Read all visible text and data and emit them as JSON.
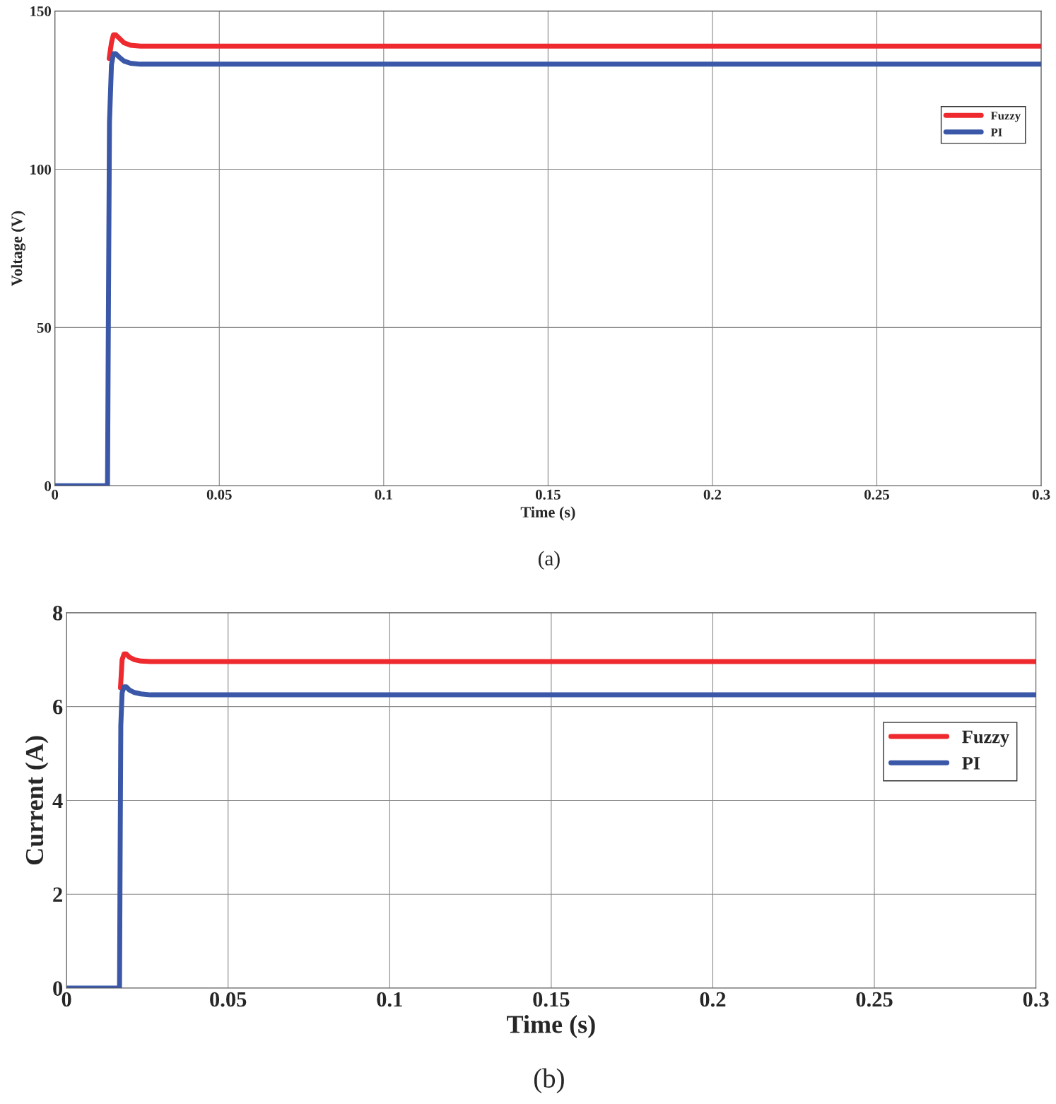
{
  "chart_data": [
    {
      "type": "line",
      "xlabel": "Time (s)",
      "ylabel": "Voltage (V)",
      "annotations": [
        "(a)"
      ],
      "xlim": [
        0,
        0.3
      ],
      "ylim": [
        0,
        150
      ],
      "xticks": [
        0,
        0.05,
        0.1,
        0.15,
        0.2,
        0.25,
        0.3
      ],
      "yticks": [
        0,
        50,
        100,
        150
      ],
      "grid": true,
      "legend": "right",
      "line_style": "solid",
      "series": [
        {
          "name": "Fuzzy",
          "color": "#ee2a2f",
          "x": [
            0.0165,
            0.0172,
            0.0178,
            0.0185,
            0.0195,
            0.021,
            0.023,
            0.026,
            0.3
          ],
          "values": [
            135,
            140,
            142.5,
            142.5,
            141.5,
            140,
            139.2,
            138.9,
            138.9
          ]
        },
        {
          "name": "PI",
          "color": "#3a57a8",
          "x": [
            0,
            0.016,
            0.0163,
            0.0166,
            0.0172,
            0.0178,
            0.0185,
            0.0195,
            0.021,
            0.023,
            0.026,
            0.3
          ],
          "values": [
            0,
            0,
            60,
            115,
            133,
            136.5,
            136.5,
            135.5,
            134.2,
            133.5,
            133.2,
            133.2
          ]
        }
      ]
    },
    {
      "type": "line",
      "xlabel": "Time (s)",
      "ylabel": "Current (A)",
      "annotations": [
        "(b)"
      ],
      "xlim": [
        0,
        0.3
      ],
      "ylim": [
        0,
        8
      ],
      "xticks": [
        0,
        0.05,
        0.1,
        0.15,
        0.2,
        0.25,
        0.3
      ],
      "yticks": [
        0,
        2,
        4,
        6,
        8
      ],
      "grid": true,
      "legend": "right",
      "line_style": "solid",
      "series": [
        {
          "name": "Fuzzy",
          "color": "#ee2a2f",
          "x": [
            0.0167,
            0.0172,
            0.0178,
            0.0185,
            0.0195,
            0.021,
            0.023,
            0.026,
            0.3
          ],
          "values": [
            6.4,
            7.0,
            7.12,
            7.12,
            7.05,
            7.0,
            6.97,
            6.96,
            6.96
          ]
        },
        {
          "name": "PI",
          "color": "#3a57a8",
          "x": [
            0,
            0.0164,
            0.0166,
            0.0168,
            0.0172,
            0.0178,
            0.0185,
            0.0195,
            0.021,
            0.023,
            0.026,
            0.3
          ],
          "values": [
            0,
            0,
            3,
            5.6,
            6.3,
            6.42,
            6.42,
            6.35,
            6.3,
            6.27,
            6.25,
            6.25
          ]
        }
      ]
    }
  ]
}
